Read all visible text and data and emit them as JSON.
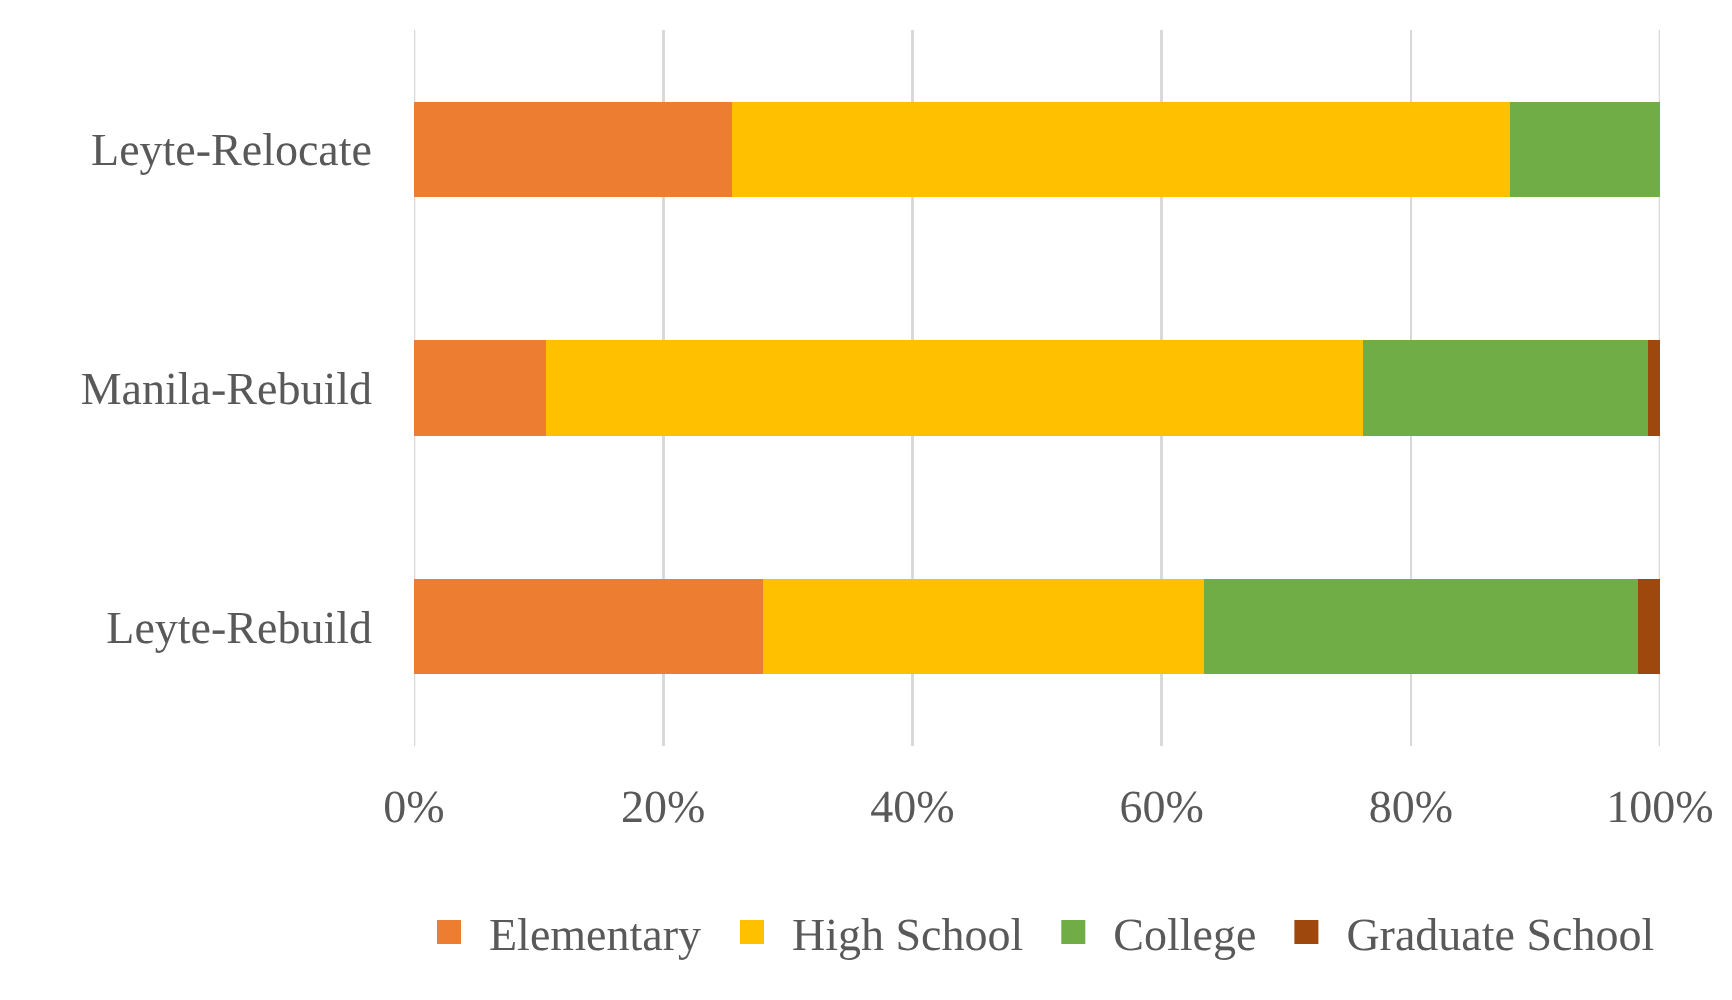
{
  "chart_data": {
    "type": "bar",
    "orientation": "horizontal",
    "stacked": true,
    "categories": [
      "Leyte-Relocate",
      "Manila-Rebuild",
      "Leyte-Rebuild"
    ],
    "series": [
      {
        "name": "Elementary",
        "color": "#ed7d31",
        "values": [
          25.5,
          10.6,
          28.0
        ]
      },
      {
        "name": "High School",
        "color": "#ffc000",
        "values": [
          62.5,
          65.6,
          35.4
        ]
      },
      {
        "name": "College",
        "color": "#70ad47",
        "values": [
          12.0,
          22.8,
          34.8
        ]
      },
      {
        "name": "Graduate School",
        "color": "#9e480e",
        "values": [
          0,
          1.0,
          1.8
        ]
      }
    ],
    "xlim": [
      0,
      100
    ],
    "xticks": [
      {
        "value": 0,
        "label": "0%"
      },
      {
        "value": 20,
        "label": "20%"
      },
      {
        "value": 40,
        "label": "40%"
      },
      {
        "value": 60,
        "label": "60%"
      },
      {
        "value": 80,
        "label": "80%"
      },
      {
        "value": 100,
        "label": "100%"
      }
    ],
    "grid": "x",
    "legend": "bottom"
  }
}
